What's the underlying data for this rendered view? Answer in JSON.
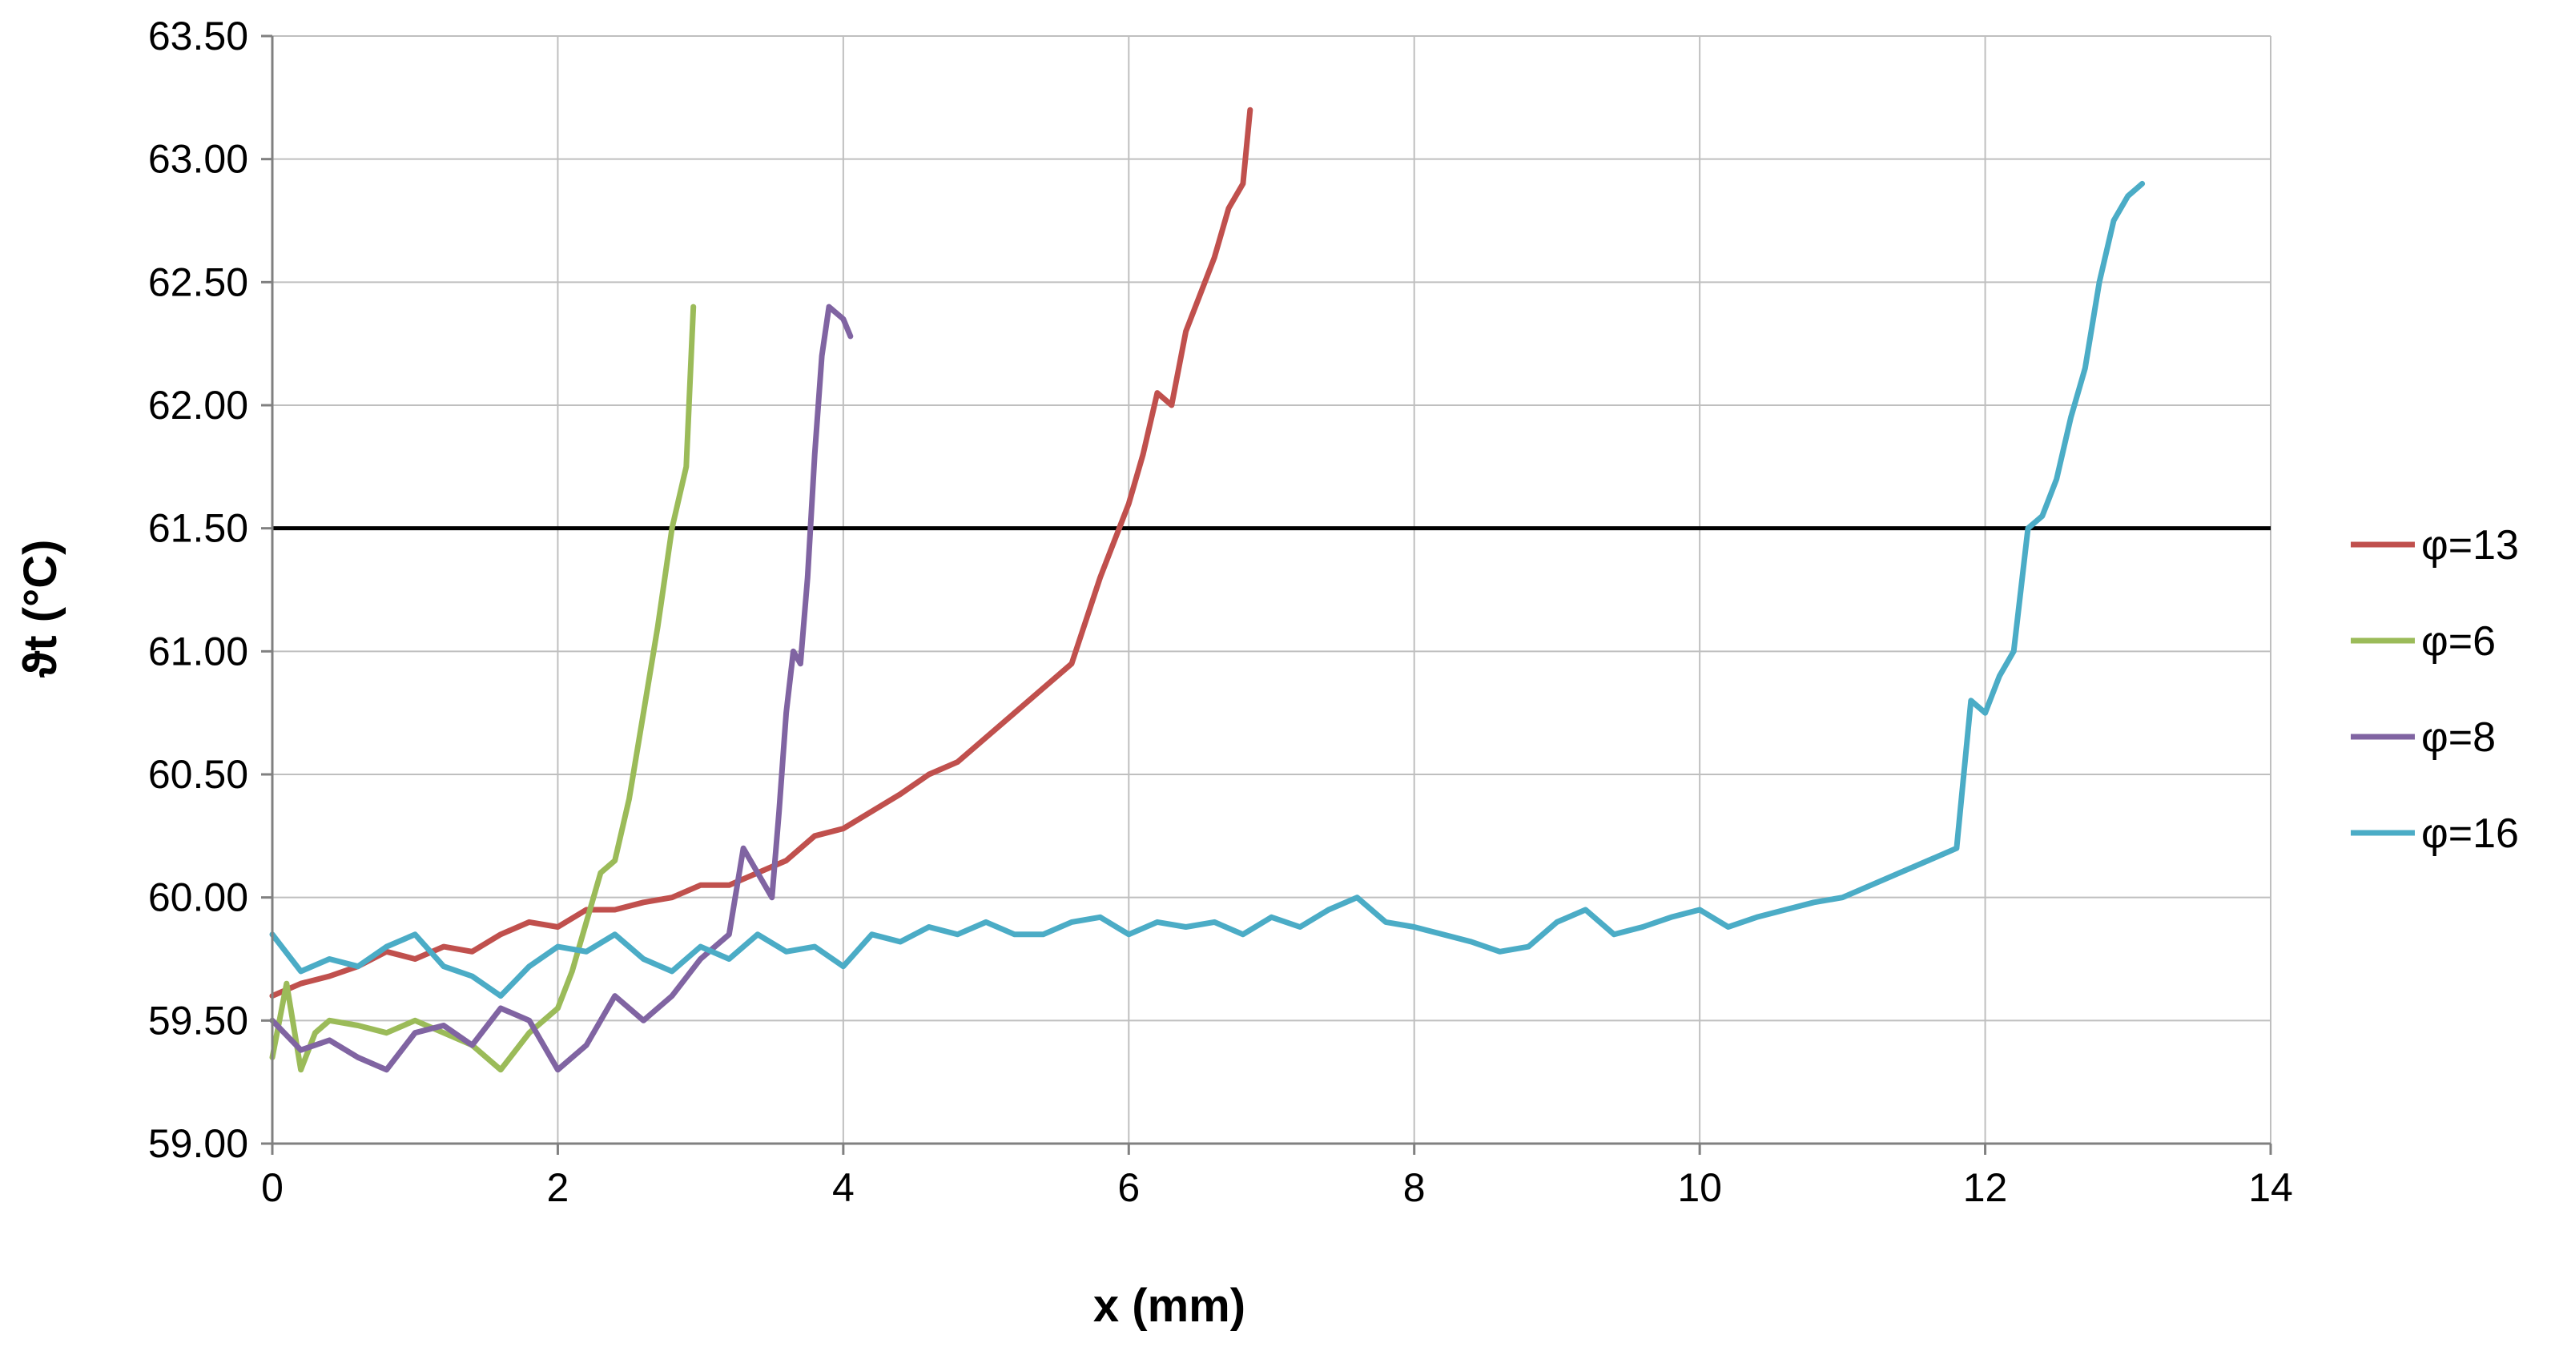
{
  "chart_data": {
    "type": "line",
    "xlabel": "x (mm)",
    "ylabel": "ϑt (°C)",
    "xlim": [
      0,
      14
    ],
    "ylim": [
      59.0,
      63.5
    ],
    "x_ticks": [
      "0",
      "2",
      "4",
      "6",
      "8",
      "10",
      "12",
      "14"
    ],
    "y_ticks": [
      "59.00",
      "59.50",
      "60.00",
      "60.50",
      "61.00",
      "61.50",
      "62.00",
      "62.50",
      "63.00",
      "63.50"
    ],
    "grid": true,
    "legend_position": "right",
    "reference_line": {
      "y": 61.5,
      "color": "#000000"
    },
    "series": [
      {
        "name": "φ=13",
        "color": "#c0504d",
        "x": [
          0,
          0.2,
          0.4,
          0.6,
          0.8,
          1.0,
          1.2,
          1.4,
          1.6,
          1.8,
          2.0,
          2.2,
          2.4,
          2.6,
          2.8,
          3.0,
          3.2,
          3.4,
          3.6,
          3.8,
          4.0,
          4.2,
          4.4,
          4.6,
          4.8,
          5.0,
          5.2,
          5.4,
          5.6,
          5.8,
          6.0,
          6.1,
          6.2,
          6.3,
          6.4,
          6.5,
          6.6,
          6.7,
          6.8,
          6.85
        ],
        "y": [
          59.6,
          59.65,
          59.68,
          59.72,
          59.78,
          59.75,
          59.8,
          59.78,
          59.85,
          59.9,
          59.88,
          59.95,
          59.95,
          59.98,
          60.0,
          60.05,
          60.05,
          60.1,
          60.15,
          60.25,
          60.28,
          60.35,
          60.42,
          60.5,
          60.55,
          60.65,
          60.75,
          60.85,
          60.95,
          61.3,
          61.6,
          61.8,
          62.05,
          62.0,
          62.3,
          62.45,
          62.6,
          62.8,
          62.9,
          63.2
        ]
      },
      {
        "name": "φ=6",
        "color": "#9bbb59",
        "x": [
          0,
          0.1,
          0.2,
          0.3,
          0.4,
          0.6,
          0.8,
          1.0,
          1.2,
          1.4,
          1.6,
          1.8,
          2.0,
          2.1,
          2.2,
          2.3,
          2.4,
          2.5,
          2.6,
          2.7,
          2.8,
          2.9,
          2.95
        ],
        "y": [
          59.35,
          59.65,
          59.3,
          59.45,
          59.5,
          59.48,
          59.45,
          59.5,
          59.45,
          59.4,
          59.3,
          59.45,
          59.55,
          59.7,
          59.9,
          60.1,
          60.15,
          60.4,
          60.75,
          61.1,
          61.5,
          61.75,
          62.4
        ]
      },
      {
        "name": "φ=8",
        "color": "#8064a2",
        "x": [
          0,
          0.2,
          0.4,
          0.6,
          0.8,
          1.0,
          1.2,
          1.4,
          1.6,
          1.8,
          2.0,
          2.2,
          2.4,
          2.6,
          2.8,
          3.0,
          3.2,
          3.3,
          3.4,
          3.5,
          3.55,
          3.6,
          3.65,
          3.7,
          3.75,
          3.8,
          3.85,
          3.9,
          4.0,
          4.05
        ],
        "y": [
          59.5,
          59.38,
          59.42,
          59.35,
          59.3,
          59.45,
          59.48,
          59.4,
          59.55,
          59.5,
          59.3,
          59.4,
          59.6,
          59.5,
          59.6,
          59.75,
          59.85,
          60.2,
          60.1,
          60.0,
          60.35,
          60.75,
          61.0,
          60.95,
          61.3,
          61.8,
          62.2,
          62.4,
          62.35,
          62.28
        ]
      },
      {
        "name": "φ=16",
        "color": "#4bacc6",
        "x": [
          0,
          0.2,
          0.4,
          0.6,
          0.8,
          1.0,
          1.2,
          1.4,
          1.6,
          1.8,
          2.0,
          2.2,
          2.4,
          2.6,
          2.8,
          3.0,
          3.2,
          3.4,
          3.6,
          3.8,
          4.0,
          4.2,
          4.4,
          4.6,
          4.8,
          5.0,
          5.2,
          5.4,
          5.6,
          5.8,
          6.0,
          6.2,
          6.4,
          6.6,
          6.8,
          7.0,
          7.2,
          7.4,
          7.6,
          7.8,
          8.0,
          8.2,
          8.4,
          8.6,
          8.8,
          9.0,
          9.2,
          9.4,
          9.6,
          9.8,
          10.0,
          10.2,
          10.4,
          10.6,
          10.8,
          11.0,
          11.2,
          11.4,
          11.6,
          11.8,
          11.9,
          12.0,
          12.1,
          12.2,
          12.3,
          12.4,
          12.5,
          12.6,
          12.7,
          12.8,
          12.9,
          13.0,
          13.1
        ],
        "y": [
          59.85,
          59.7,
          59.75,
          59.72,
          59.8,
          59.85,
          59.72,
          59.68,
          59.6,
          59.72,
          59.8,
          59.78,
          59.85,
          59.75,
          59.7,
          59.8,
          59.75,
          59.85,
          59.78,
          59.8,
          59.72,
          59.85,
          59.82,
          59.88,
          59.85,
          59.9,
          59.85,
          59.85,
          59.9,
          59.92,
          59.85,
          59.9,
          59.88,
          59.9,
          59.85,
          59.92,
          59.88,
          59.95,
          60.0,
          59.9,
          59.88,
          59.85,
          59.82,
          59.78,
          59.8,
          59.9,
          59.95,
          59.85,
          59.88,
          59.92,
          59.95,
          59.88,
          59.92,
          59.95,
          59.98,
          60.0,
          60.05,
          60.1,
          60.15,
          60.2,
          60.8,
          60.75,
          60.9,
          61.0,
          61.5,
          61.55,
          61.7,
          61.95,
          62.15,
          62.5,
          62.75,
          62.85,
          62.9
        ]
      }
    ]
  }
}
